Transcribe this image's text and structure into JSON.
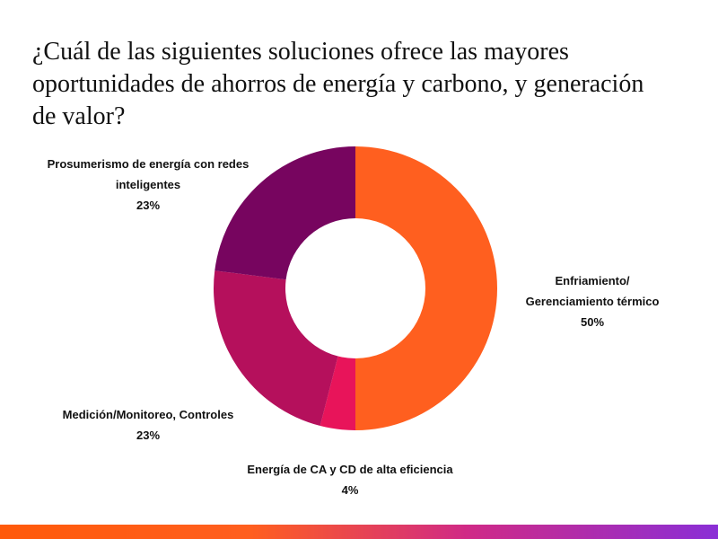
{
  "title": {
    "line1": "¿Cuál de las siguientes soluciones ofrece las mayores",
    "line2": "oportunidades de ahorros de energía y carbono, y generación",
    "line3": "de valor?"
  },
  "chart_data": {
    "type": "pie",
    "variant": "donut",
    "title": "¿Cuál de las siguientes soluciones ofrece las mayores oportunidades de ahorros de energía y carbono, y generación de valor?",
    "slices": [
      {
        "id": "enfriamiento",
        "label": "Enfriamiento/ Gerenciamiento térmico",
        "label_lines": [
          "Enfriamiento/",
          "Gerenciamiento térmico"
        ],
        "value": 50,
        "display": "50%",
        "color": "#ff5f1f"
      },
      {
        "id": "energia-ca-cd",
        "label": "Energía de CA y CD de alta eficiencia",
        "label_lines": [
          "Energía de CA y CD de alta eficiencia"
        ],
        "value": 4,
        "display": "4%",
        "color": "#e8145a"
      },
      {
        "id": "medicion",
        "label": "Medición/Monitoreo, Controles",
        "label_lines": [
          "Medición/Monitoreo, Controles"
        ],
        "value": 23,
        "display": "23%",
        "color": "#b5105c"
      },
      {
        "id": "prosumerismo",
        "label": "Prosumerismo de energía con redes inteligentes",
        "label_lines": [
          "Prosumerismo de energía con redes",
          "inteligentes"
        ],
        "value": 23,
        "display": "23%",
        "color": "#77055f"
      }
    ],
    "start_angle": "12 o'clock",
    "direction": "clockwise"
  },
  "footer": {
    "gradient_colors": [
      "#ff5a0a",
      "#ff5f1f",
      "#d02a86",
      "#8a2fd6"
    ]
  }
}
